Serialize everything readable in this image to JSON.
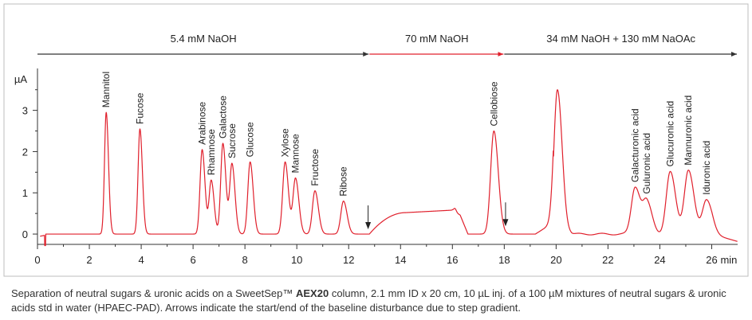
{
  "chart_data": {
    "type": "line",
    "ylabel": "µA",
    "x_unit": "min",
    "xlim": [
      0,
      27
    ],
    "ylim": [
      -0.25,
      3.9
    ],
    "x_ticks": [
      0,
      2,
      4,
      6,
      8,
      10,
      12,
      14,
      16,
      18,
      20,
      22,
      24,
      26
    ],
    "y_ticks": [
      0,
      1,
      2,
      3
    ],
    "grid": false,
    "gradient_segments": [
      {
        "label": "5.4 mM NaOH",
        "start": 0,
        "end": 12.8,
        "color": "#333333"
      },
      {
        "label": "70 mM NaOH",
        "start": 12.8,
        "end": 18.0,
        "color": "#e0202c"
      },
      {
        "label": "34 mM NaOH + 130 mM NaOAc",
        "start": 18.0,
        "end": 27,
        "color": "#333333"
      }
    ],
    "peaks": [
      {
        "name": "Mannitol",
        "rt": 2.65,
        "height": 2.95
      },
      {
        "name": "Fucose",
        "rt": 3.95,
        "height": 2.55
      },
      {
        "name": "Arabinose",
        "rt": 6.35,
        "height": 2.05
      },
      {
        "name": "Rhamnose",
        "rt": 6.7,
        "height": 1.3
      },
      {
        "name": "Galactose",
        "rt": 7.15,
        "height": 2.2
      },
      {
        "name": "Sucrose",
        "rt": 7.5,
        "height": 1.7
      },
      {
        "name": "Glucose",
        "rt": 8.2,
        "height": 1.75
      },
      {
        "name": "Xylose",
        "rt": 9.55,
        "height": 1.75
      },
      {
        "name": "Mannose",
        "rt": 9.95,
        "height": 1.35
      },
      {
        "name": "Fructose",
        "rt": 10.7,
        "height": 1.05
      },
      {
        "name": "Ribose",
        "rt": 11.8,
        "height": 0.8
      },
      {
        "name": "Cellobiose",
        "rt": 17.6,
        "height": 2.5
      },
      {
        "name": "Galacturonic acid",
        "rt": 23.05,
        "height": 1.15
      },
      {
        "name": "Guluronic acid",
        "rt": 23.5,
        "height": 0.75
      },
      {
        "name": "Glucuronic acid",
        "rt": 24.4,
        "height": 1.5
      },
      {
        "name": "Mannuronic acid",
        "rt": 25.1,
        "height": 1.55
      },
      {
        "name": "Iduronic acid",
        "rt": 25.8,
        "height": 0.85
      }
    ],
    "unlabeled_peaks": [
      {
        "rt": 20.05,
        "height": 3.5
      }
    ],
    "arrows": [
      12.75,
      18.05
    ]
  },
  "caption": {
    "part1": "Separation of neutral sugars & uronic acids on a SweetSep™ ",
    "bold": "AEX20",
    "part2": " column, 2.1 mm ID x 20 cm, 10 µL inj. of a 100 µM mixtures of neutral sugars & uronic acids std in water (HPAEC-PAD). Arrows indicate the start/end of the baseline disturbance due to step gradient."
  }
}
